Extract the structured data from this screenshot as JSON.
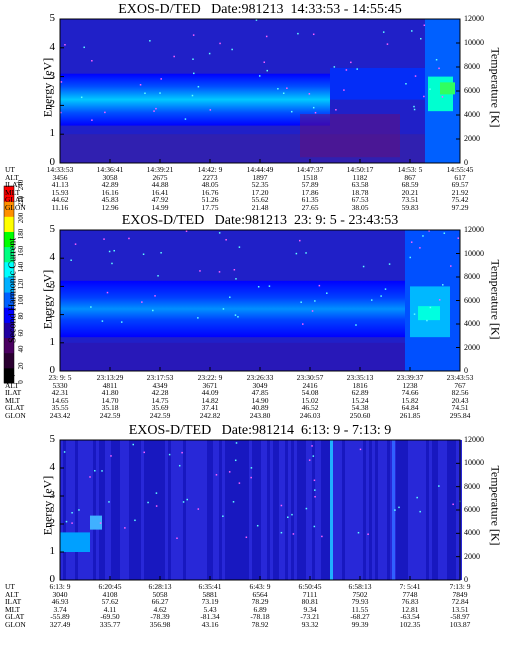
{
  "panels": [
    {
      "title": "EXOS-D/TED   Date:981213  14:33:53 - 14:55:45",
      "ylabel": "Energy [eV]",
      "y2label": "Temperature [K]",
      "yticks": [
        "0",
        "1",
        "2",
        "3",
        "4",
        "5"
      ],
      "y2ticks": [
        "0",
        "2000",
        "4000",
        "6000",
        "8000",
        "10000",
        "12000"
      ],
      "ephemeris": [
        {
          "label": "UT",
          "values": [
            "14:33:53",
            "14:36:41",
            "14:39:21",
            "14:42: 9",
            "14:44:49",
            "14:47:37",
            "14:50:17",
            "14:53: 5",
            "14:55:45"
          ]
        },
        {
          "label": "ALT",
          "values": [
            "3456",
            "3058",
            "2675",
            "2273",
            "1897",
            "1518",
            "1182",
            "867",
            "617"
          ]
        },
        {
          "label": "ILAT",
          "values": [
            "41.13",
            "42.89",
            "44.88",
            "48.05",
            "52.35",
            "57.89",
            "63.58",
            "68.59",
            "69.57"
          ]
        },
        {
          "label": "MLT",
          "values": [
            "15.93",
            "16.16",
            "16.41",
            "16.76",
            "17.20",
            "17.86",
            "18.78",
            "20.21",
            "21.92"
          ]
        },
        {
          "label": "GLAT",
          "values": [
            "44.62",
            "45.83",
            "47.92",
            "51.26",
            "55.62",
            "61.35",
            "67.53",
            "73.51",
            "75.42"
          ]
        },
        {
          "label": "GLON",
          "values": [
            "11.16",
            "12.96",
            "14.99",
            "17.75",
            "21.48",
            "27.65",
            "38.05",
            "59.83",
            "97.29"
          ]
        }
      ]
    },
    {
      "title": "EXOS-D/TED   Date:981213  23: 9: 5 - 23:43:53",
      "ylabel": "Energy [eV]",
      "y2label": "Temperature [K]",
      "yticks": [
        "0",
        "1",
        "2",
        "3",
        "4",
        "5"
      ],
      "y2ticks": [
        "0",
        "2000",
        "4000",
        "6000",
        "8000",
        "10000",
        "12000"
      ],
      "ephemeris": [
        {
          "label": "UT",
          "values": [
            "23: 9: 5",
            "23:13:29",
            "23:17:53",
            "23:22: 9",
            "23:26:33",
            "23:30:57",
            "23:35:13",
            "23:39:37",
            "23:43:53"
          ]
        },
        {
          "label": "ALT",
          "values": [
            "5330",
            "4811",
            "4349",
            "3671",
            "3049",
            "2416",
            "1816",
            "1238",
            "767"
          ]
        },
        {
          "label": "ILAT",
          "values": [
            "42.31",
            "41.80",
            "42.28",
            "44.09",
            "47.85",
            "54.08",
            "62.89",
            "74.66",
            "82.56"
          ]
        },
        {
          "label": "MLT",
          "values": [
            "14.65",
            "14.70",
            "14.75",
            "14.82",
            "14.90",
            "15.02",
            "15.24",
            "15.82",
            "20.43"
          ]
        },
        {
          "label": "GLAT",
          "values": [
            "35.55",
            "35.18",
            "35.69",
            "37.41",
            "40.89",
            "46.52",
            "54.38",
            "64.84",
            "74.51"
          ]
        },
        {
          "label": "GLON",
          "values": [
            "243.42",
            "242.59",
            "242.59",
            "242.82",
            "243.80",
            "246.03",
            "250.60",
            "261.85",
            "295.84"
          ]
        }
      ]
    },
    {
      "title": "EXOS-D/TED   Date:981214  6:13: 9 - 7:13: 9",
      "ylabel": "Energy [eV]",
      "y2label": "Temperature [K]",
      "yticks": [
        "0",
        "1",
        "2",
        "3",
        "4",
        "5"
      ],
      "y2ticks": [
        "0",
        "2000",
        "4000",
        "6000",
        "8000",
        "10000",
        "12000"
      ],
      "ephemeris": [
        {
          "label": "UT",
          "values": [
            "6:13: 9",
            "6:20:45",
            "6:28:13",
            "6:35:41",
            "6:43: 9",
            "6:50:45",
            "6:58:13",
            "7: 5:41",
            "7:13: 9"
          ]
        },
        {
          "label": "ALT",
          "values": [
            "3040",
            "4108",
            "5058",
            "5881",
            "6564",
            "7111",
            "7502",
            "7748",
            "7849"
          ]
        },
        {
          "label": "ILAT",
          "values": [
            "46.93",
            "57.62",
            "66.27",
            "73.19",
            "78.29",
            "80.81",
            "79.93",
            "76.83",
            "72.84"
          ]
        },
        {
          "label": "MLT",
          "values": [
            "3.74",
            "4.11",
            "4.62",
            "5.43",
            "6.89",
            "9.34",
            "11.55",
            "12.81",
            "13.51"
          ]
        },
        {
          "label": "GLAT",
          "values": [
            "-55.89",
            "-69.50",
            "-78.39",
            "-81.34",
            "-78.18",
            "-73.21",
            "-68.27",
            "-63.54",
            "-58.97"
          ]
        },
        {
          "label": "GLON",
          "values": [
            "327.49",
            "335.77",
            "356.98",
            "43.16",
            "78.92",
            "93.32",
            "99.39",
            "102.35",
            "103.87"
          ]
        }
      ]
    }
  ],
  "colorbar": {
    "label": "Second Harmonic Current",
    "ticks": [
      "0",
      "20",
      "40",
      "60",
      "80",
      "100",
      "120",
      "140",
      "160",
      "180",
      "200",
      "220",
      "240"
    ],
    "colors": [
      "#000000",
      "#2a0030",
      "#4a0060",
      "#2000a0",
      "#0000ff",
      "#0060ff",
      "#00b0ff",
      "#00ffff",
      "#00ff80",
      "#00ff00",
      "#ffff00",
      "#ff9000",
      "#ff0000"
    ]
  },
  "chart_data": {
    "type": "heatmap",
    "panels": 3,
    "x_axis": "UT",
    "y_axis": "Energy [eV]",
    "ylim": [
      0,
      5
    ],
    "y2_axis": "Temperature [K]",
    "y2lim": [
      0,
      12000
    ],
    "color_axis": "Second Harmonic Current",
    "clim": [
      0,
      240
    ]
  }
}
